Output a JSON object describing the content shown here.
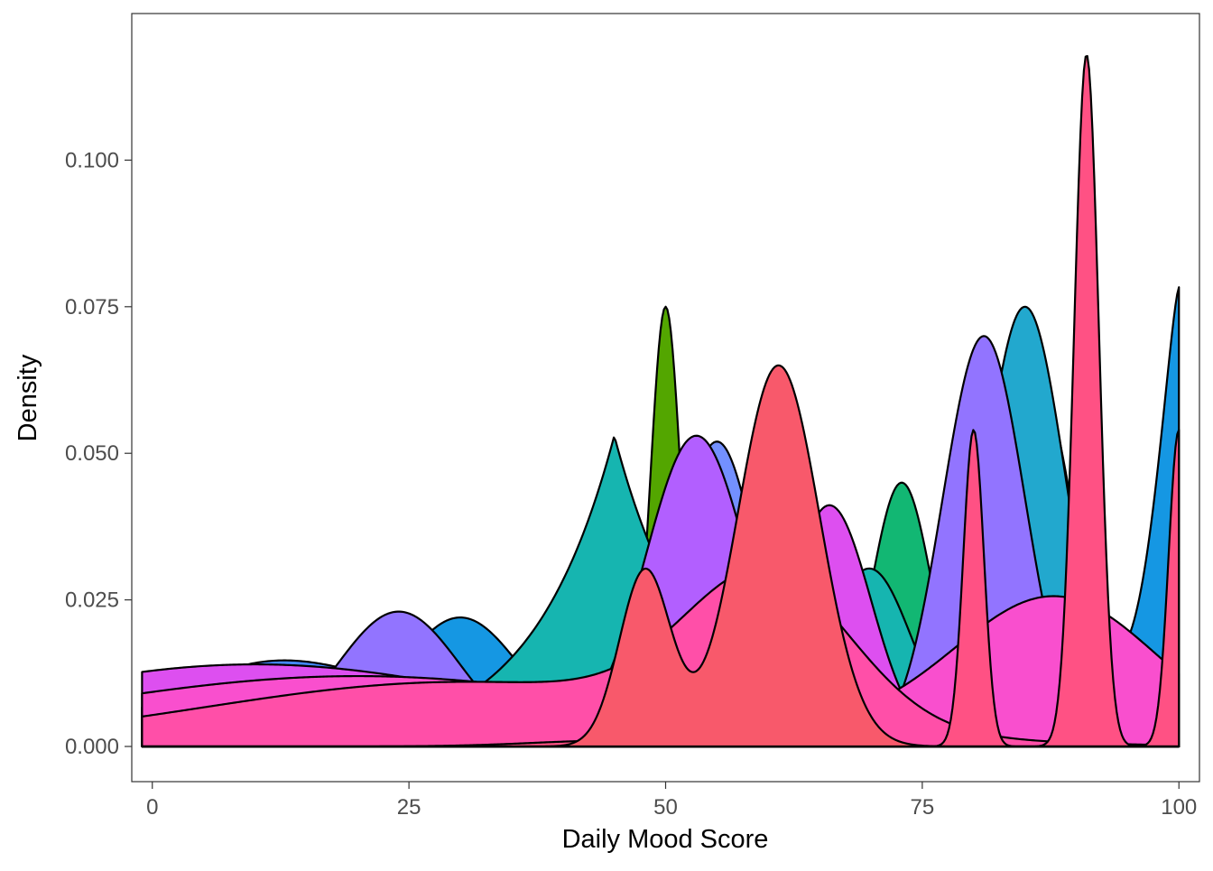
{
  "chart_data": {
    "type": "area",
    "xlabel": "Daily Mood Score",
    "ylabel": "Density",
    "xlim": [
      -2,
      102
    ],
    "ylim": [
      -0.006,
      0.125
    ],
    "x_ticks": [
      0,
      25,
      50,
      75,
      100
    ],
    "x_tick_labels": [
      "0",
      "25",
      "50",
      "75",
      "100"
    ],
    "y_ticks": [
      0,
      0.025,
      0.05,
      0.075,
      0.1
    ],
    "y_tick_labels": [
      "0.000",
      "0.025",
      "0.050",
      "0.075",
      "0.100"
    ],
    "grid": false,
    "legend": "none",
    "x_range": [
      -1,
      100
    ],
    "series": [
      {
        "color": "#4488ff",
        "components": [
          [
            0.012,
            11,
            10,
            1
          ],
          [
            0.012,
            50,
            22,
            1
          ]
        ]
      },
      {
        "color": "#8a9400",
        "components": [
          [
            0.008,
            32,
            5,
            1
          ],
          [
            0.048,
            45,
            4,
            0.7
          ]
        ]
      },
      {
        "color": "#1597e3",
        "components": [
          [
            0.022,
            30,
            6,
            1
          ],
          [
            0.06,
            87,
            3,
            0.8
          ],
          [
            0.078,
            100,
            2,
            0.7
          ]
        ]
      },
      {
        "color": "#53a600",
        "components": [
          [
            0.075,
            50,
            1.5,
            1
          ]
        ]
      },
      {
        "color": "#12b773",
        "components": [
          [
            0.045,
            73,
            3,
            1
          ]
        ]
      },
      {
        "color": "#16b5b0",
        "components": [
          [
            0.053,
            45,
            4,
            0.5
          ],
          [
            0.028,
            70,
            4,
            1
          ]
        ]
      },
      {
        "color": "#7390ff",
        "components": [
          [
            0.052,
            55,
            4,
            1
          ]
        ]
      },
      {
        "color": "#22a8ce",
        "components": [
          [
            0.075,
            85,
            4,
            1
          ]
        ]
      },
      {
        "color": "#9274ff",
        "components": [
          [
            0.023,
            24,
            6,
            1
          ],
          [
            0.07,
            81,
            4,
            1
          ]
        ]
      },
      {
        "color": "#b25fff",
        "components": [
          [
            0.053,
            53,
            5,
            1
          ]
        ]
      },
      {
        "color": "#dd4ff0",
        "components": [
          [
            0.014,
            10,
            25,
            1
          ],
          [
            0.04,
            66,
            4,
            1
          ]
        ]
      },
      {
        "color": "#f94fce",
        "components": [
          [
            0.012,
            20,
            28,
            1
          ],
          [
            0.025,
            88,
            10,
            1
          ]
        ]
      },
      {
        "color": "#ff4fa8",
        "components": [
          [
            0.011,
            30,
            25,
            1
          ],
          [
            0.025,
            60,
            8,
            1
          ]
        ]
      },
      {
        "color": "#ff5184",
        "components": [
          [
            0.001,
            45,
            8,
            1
          ],
          [
            0.054,
            80,
            1,
            1
          ],
          [
            0.118,
            91,
            1.2,
            1
          ],
          [
            0.054,
            100,
            1,
            1
          ]
        ]
      },
      {
        "color": "#f8596b",
        "components": [
          [
            0.03,
            48,
            2.5,
            1
          ],
          [
            0.065,
            61,
            4,
            1
          ]
        ]
      }
    ]
  }
}
